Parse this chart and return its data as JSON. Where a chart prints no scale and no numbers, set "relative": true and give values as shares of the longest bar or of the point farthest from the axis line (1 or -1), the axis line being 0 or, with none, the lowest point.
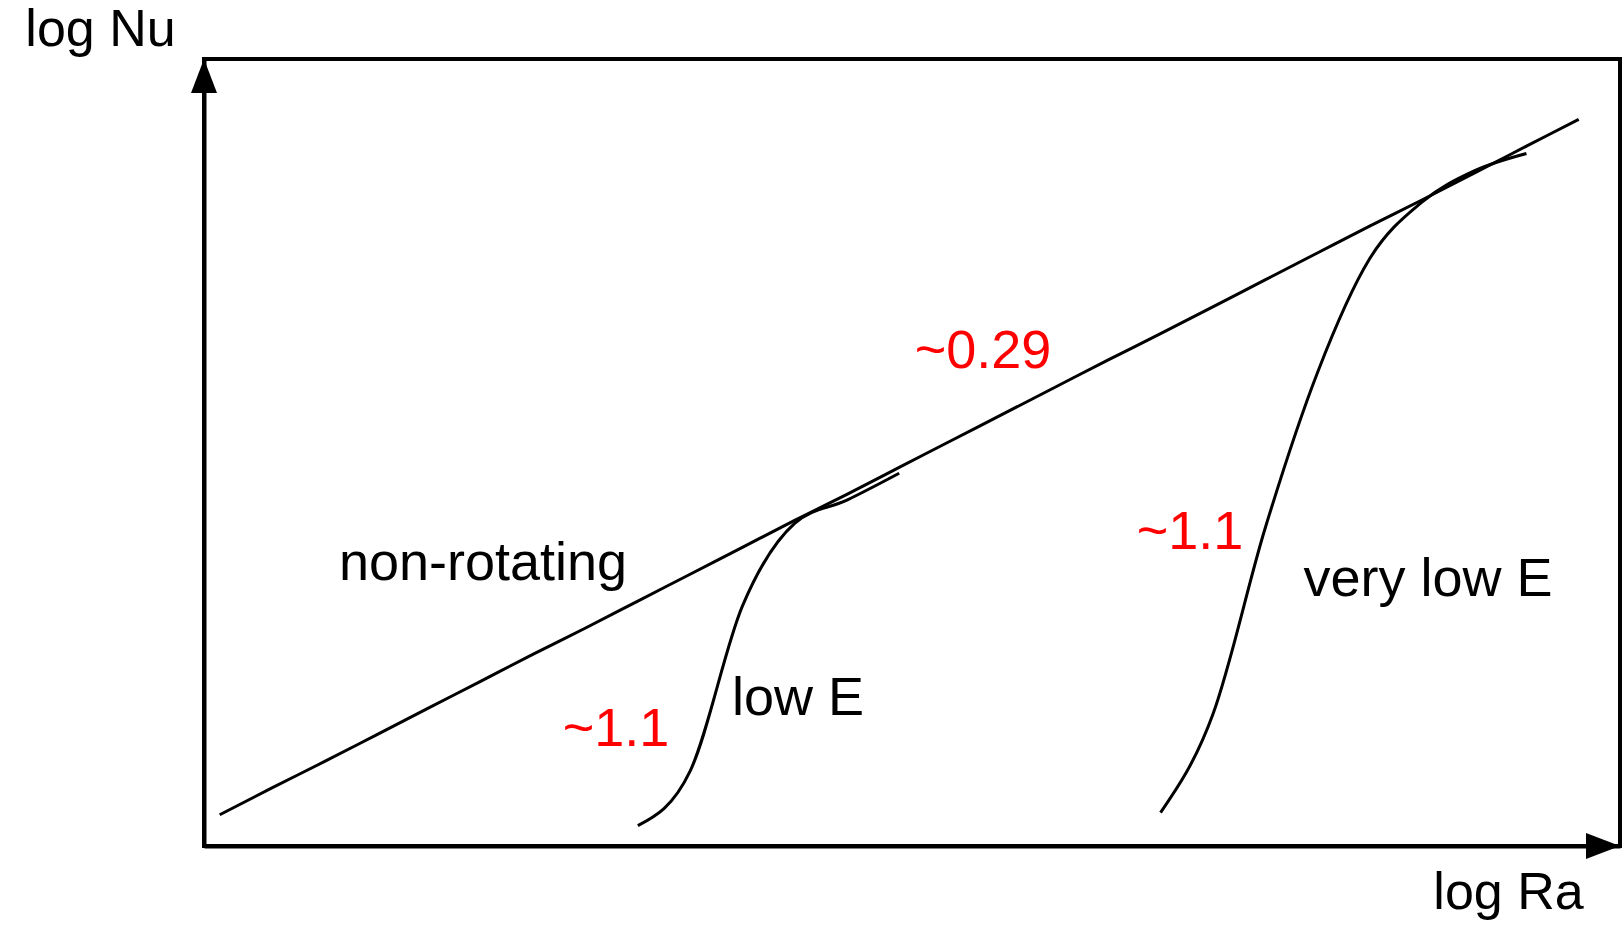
{
  "chart_data": {
    "type": "line",
    "relative": true,
    "tick_labels": false,
    "xlabel": "log Ra",
    "ylabel": "log Nu",
    "categories": [
      null,
      null,
      null,
      null,
      null,
      null,
      null,
      null,
      null,
      null,
      null,
      null,
      null,
      null,
      null,
      null,
      null,
      null,
      null,
      null,
      null,
      null,
      null,
      null,
      null,
      null,
      null
    ],
    "series": [
      {
        "name": "non-rotating",
        "color": "#000000",
        "values": [
          0.043,
          0.08,
          0.116,
          0.153,
          0.19,
          0.227,
          0.264,
          0.3,
          0.337,
          0.374,
          0.411,
          0.448,
          0.484,
          0.521,
          0.558,
          0.595,
          0.632,
          0.669,
          0.705,
          0.742,
          0.779,
          0.816,
          0.853,
          0.889,
          0.926,
          0.963,
          1.0
        ]
      },
      {
        "name": "low E",
        "color": "#000000",
        "values": [
          null,
          null,
          null,
          null,
          null,
          null,
          null,
          null,
          0.028,
          0.103,
          0.33,
          0.444,
          0.476,
          0.513,
          null,
          null,
          null,
          null,
          null,
          null,
          null,
          null,
          null,
          null,
          null,
          null,
          null
        ]
      },
      {
        "name": "very low E",
        "color": "#000000",
        "values": [
          null,
          null,
          null,
          null,
          null,
          null,
          null,
          null,
          null,
          null,
          null,
          null,
          null,
          null,
          null,
          null,
          null,
          null,
          0.046,
          0.181,
          0.437,
          0.651,
          0.808,
          0.886,
          0.929,
          0.953,
          null
        ]
      }
    ],
    "annotations": [
      "~0.29",
      "~1.1",
      "~1.1"
    ]
  }
}
